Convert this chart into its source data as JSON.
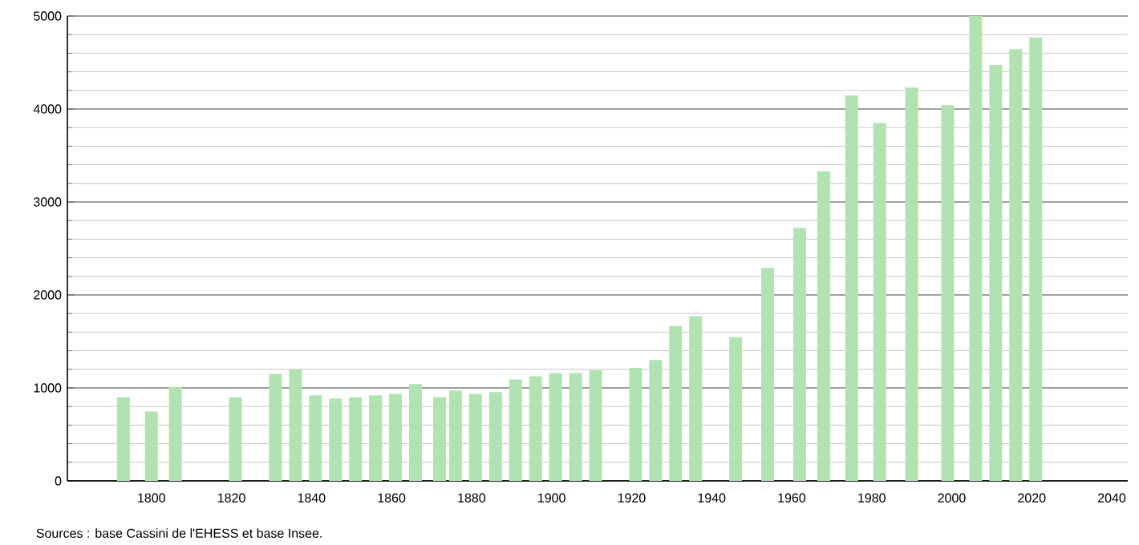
{
  "chart_data": {
    "type": "bar",
    "x": [
      1793,
      1800,
      1806,
      1821,
      1831,
      1836,
      1841,
      1846,
      1851,
      1856,
      1861,
      1866,
      1872,
      1876,
      1881,
      1886,
      1891,
      1896,
      1901,
      1906,
      1911,
      1921,
      1926,
      1931,
      1936,
      1946,
      1954,
      1962,
      1968,
      1975,
      1982,
      1990,
      1999,
      2006,
      2011,
      2016,
      2021
    ],
    "values": [
      900,
      745,
      1010,
      900,
      1150,
      1195,
      920,
      885,
      900,
      920,
      935,
      1040,
      900,
      970,
      935,
      955,
      1090,
      1125,
      1160,
      1160,
      1190,
      1215,
      1300,
      1665,
      1770,
      1545,
      2290,
      2720,
      3330,
      4145,
      3850,
      4230,
      4040,
      5000,
      4475,
      4645,
      4770
    ],
    "color": "#b2e2b2",
    "xlim": [
      1779,
      2044
    ],
    "ylim": [
      0,
      5000
    ],
    "xticks": [
      1800,
      1820,
      1840,
      1860,
      1880,
      1900,
      1920,
      1940,
      1960,
      1980,
      2000,
      2020,
      2040
    ],
    "yticks": [
      0,
      1000,
      2000,
      3000,
      4000,
      5000
    ],
    "grid": "y",
    "annotations": [
      "Sources : base Cassini de l'EHESS et base Insee."
    ]
  }
}
